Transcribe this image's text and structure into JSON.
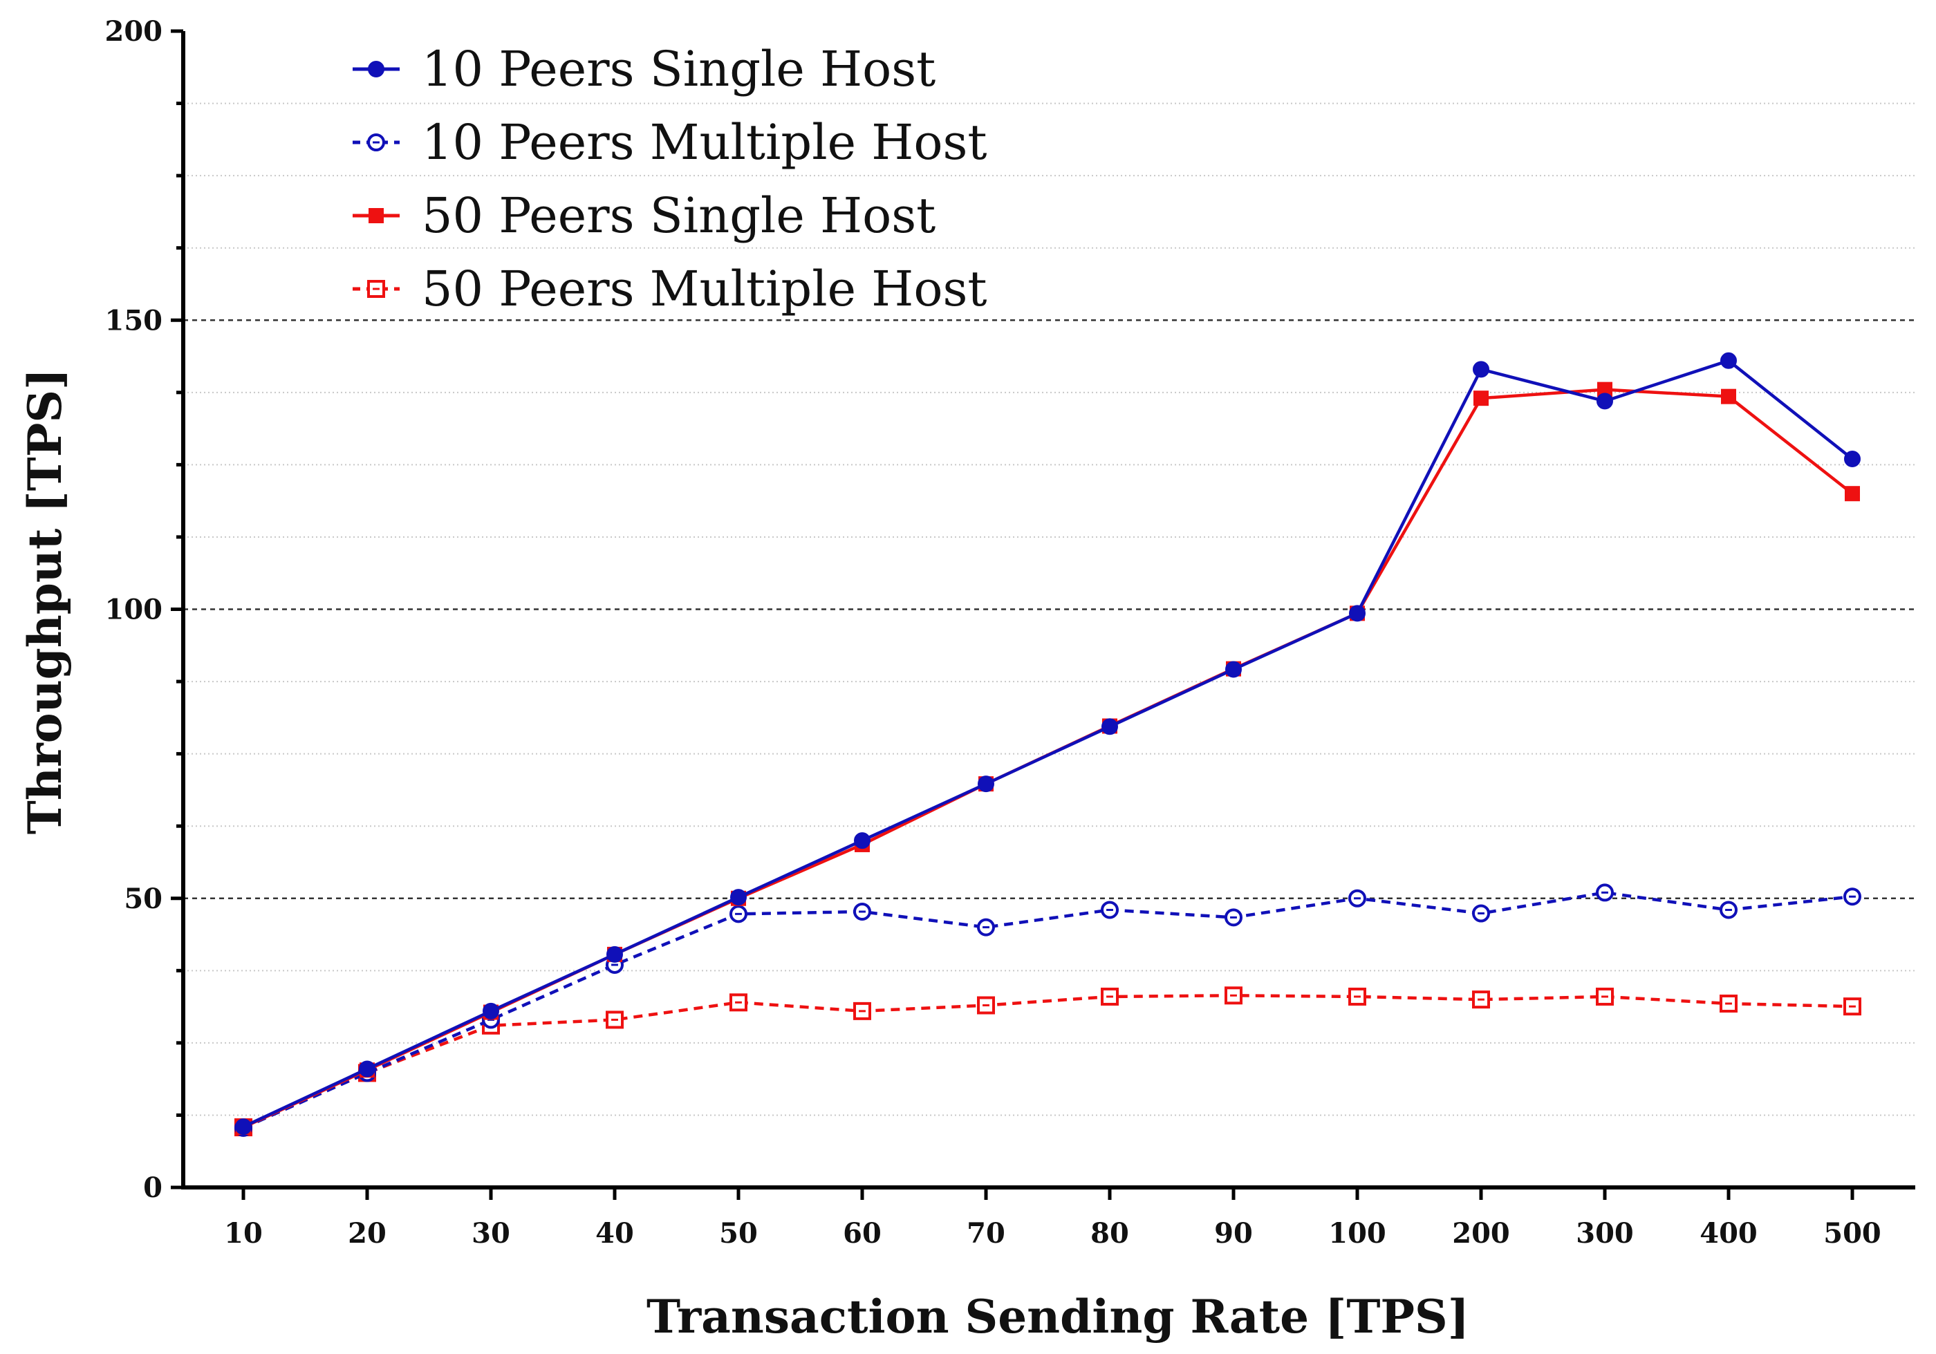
{
  "chart_data": {
    "type": "line",
    "title": "",
    "xlabel": "Transaction Sending Rate [TPS]",
    "ylabel": "Throughput [TPS]",
    "categories": [
      "10",
      "20",
      "30",
      "40",
      "50",
      "60",
      "70",
      "80",
      "90",
      "100",
      "200",
      "300",
      "400",
      "500"
    ],
    "ylim": [
      0,
      200
    ],
    "yticks": [
      "0",
      "50",
      "100",
      "150",
      "200"
    ],
    "grid": "horizontal dashed major + dotted minor",
    "legend_position": "top-left",
    "series": [
      {
        "name": "10 Peers Single Host",
        "color": "#1010b8",
        "line": "solid",
        "marker": "filled-circle",
        "values": [
          10.5,
          20.5,
          30.5,
          40.3,
          50.2,
          60.0,
          69.8,
          79.7,
          89.6,
          99.3,
          141.5,
          136.0,
          143.0,
          126.0
        ]
      },
      {
        "name": "10 Peers Multiple Host",
        "color": "#1010b8",
        "line": "dashed",
        "marker": "open-circle",
        "values": [
          10.3,
          19.8,
          29.0,
          38.5,
          47.3,
          47.7,
          45.0,
          48.0,
          46.7,
          50.0,
          47.4,
          51.0,
          48.0,
          50.3
        ]
      },
      {
        "name": "50 Peers Single Host",
        "color": "#ee1111",
        "line": "solid",
        "marker": "filled-square",
        "values": [
          10.4,
          20.3,
          30.3,
          40.3,
          50.0,
          59.3,
          69.8,
          79.8,
          89.7,
          99.3,
          136.5,
          138.0,
          136.8,
          120.0
        ]
      },
      {
        "name": "50 Peers Multiple Host",
        "color": "#ee1111",
        "line": "dashed",
        "marker": "open-square",
        "values": [
          10.4,
          19.8,
          28.0,
          29.0,
          32.0,
          30.5,
          31.5,
          33.0,
          33.2,
          33.0,
          32.5,
          33.0,
          31.8,
          31.3
        ]
      }
    ]
  }
}
